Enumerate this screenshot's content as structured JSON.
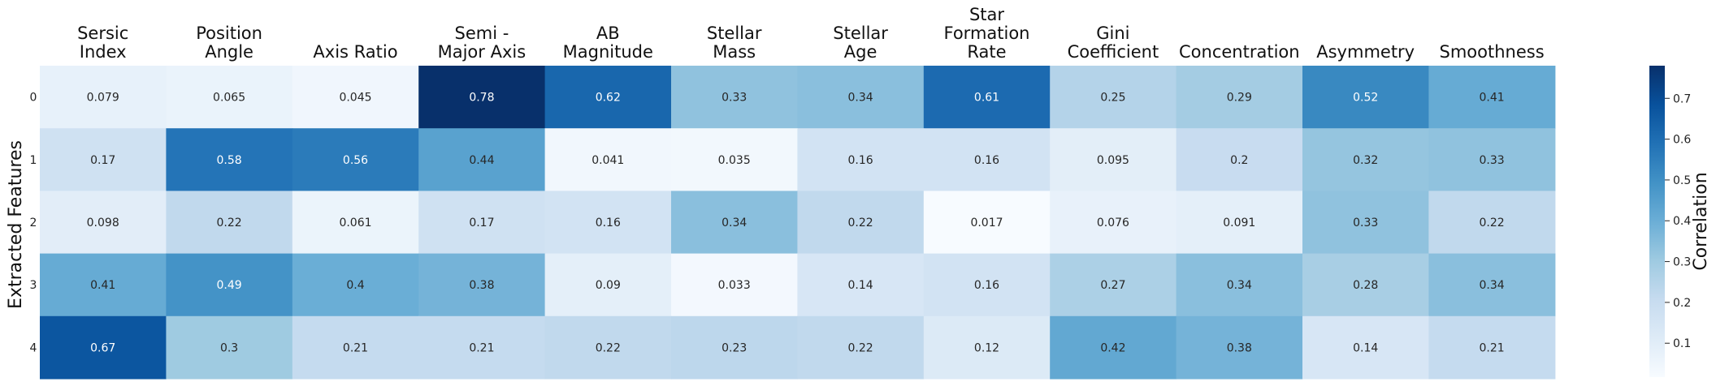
{
  "chart_data": {
    "type": "heatmap",
    "columns": [
      [
        "Sersic",
        "Index"
      ],
      [
        "Position",
        "Angle"
      ],
      [
        "Axis Ratio"
      ],
      [
        "Semi -",
        "Major Axis"
      ],
      [
        "AB",
        "Magnitude"
      ],
      [
        "Stellar",
        "Mass"
      ],
      [
        "Stellar",
        "Age"
      ],
      [
        "Star",
        "Formation",
        "Rate"
      ],
      [
        "Gini",
        "Coefficient"
      ],
      [
        "Concentration"
      ],
      [
        "Asymmetry"
      ],
      [
        "Smoothness"
      ]
    ],
    "rows": [
      "0",
      "1",
      "2",
      "3",
      "4"
    ],
    "values": [
      [
        0.079,
        0.065,
        0.045,
        0.78,
        0.62,
        0.33,
        0.34,
        0.61,
        0.25,
        0.29,
        0.52,
        0.41
      ],
      [
        0.17,
        0.58,
        0.56,
        0.44,
        0.041,
        0.035,
        0.16,
        0.16,
        0.095,
        0.2,
        0.32,
        0.33
      ],
      [
        0.098,
        0.22,
        0.061,
        0.17,
        0.16,
        0.34,
        0.22,
        0.017,
        0.076,
        0.091,
        0.33,
        0.22
      ],
      [
        0.41,
        0.49,
        0.4,
        0.38,
        0.09,
        0.033,
        0.14,
        0.16,
        0.27,
        0.34,
        0.28,
        0.34
      ],
      [
        0.67,
        0.3,
        0.21,
        0.21,
        0.22,
        0.23,
        0.22,
        0.12,
        0.42,
        0.38,
        0.14,
        0.21
      ]
    ],
    "ylabel": "Extracted Features",
    "colorbar": {
      "label": "Correlation",
      "range": [
        0.017,
        0.78
      ],
      "ticks": [
        0.1,
        0.2,
        0.3,
        0.4,
        0.5,
        0.6,
        0.7
      ],
      "colormap": "Blues"
    },
    "annotation_format": "2 significant digits"
  }
}
